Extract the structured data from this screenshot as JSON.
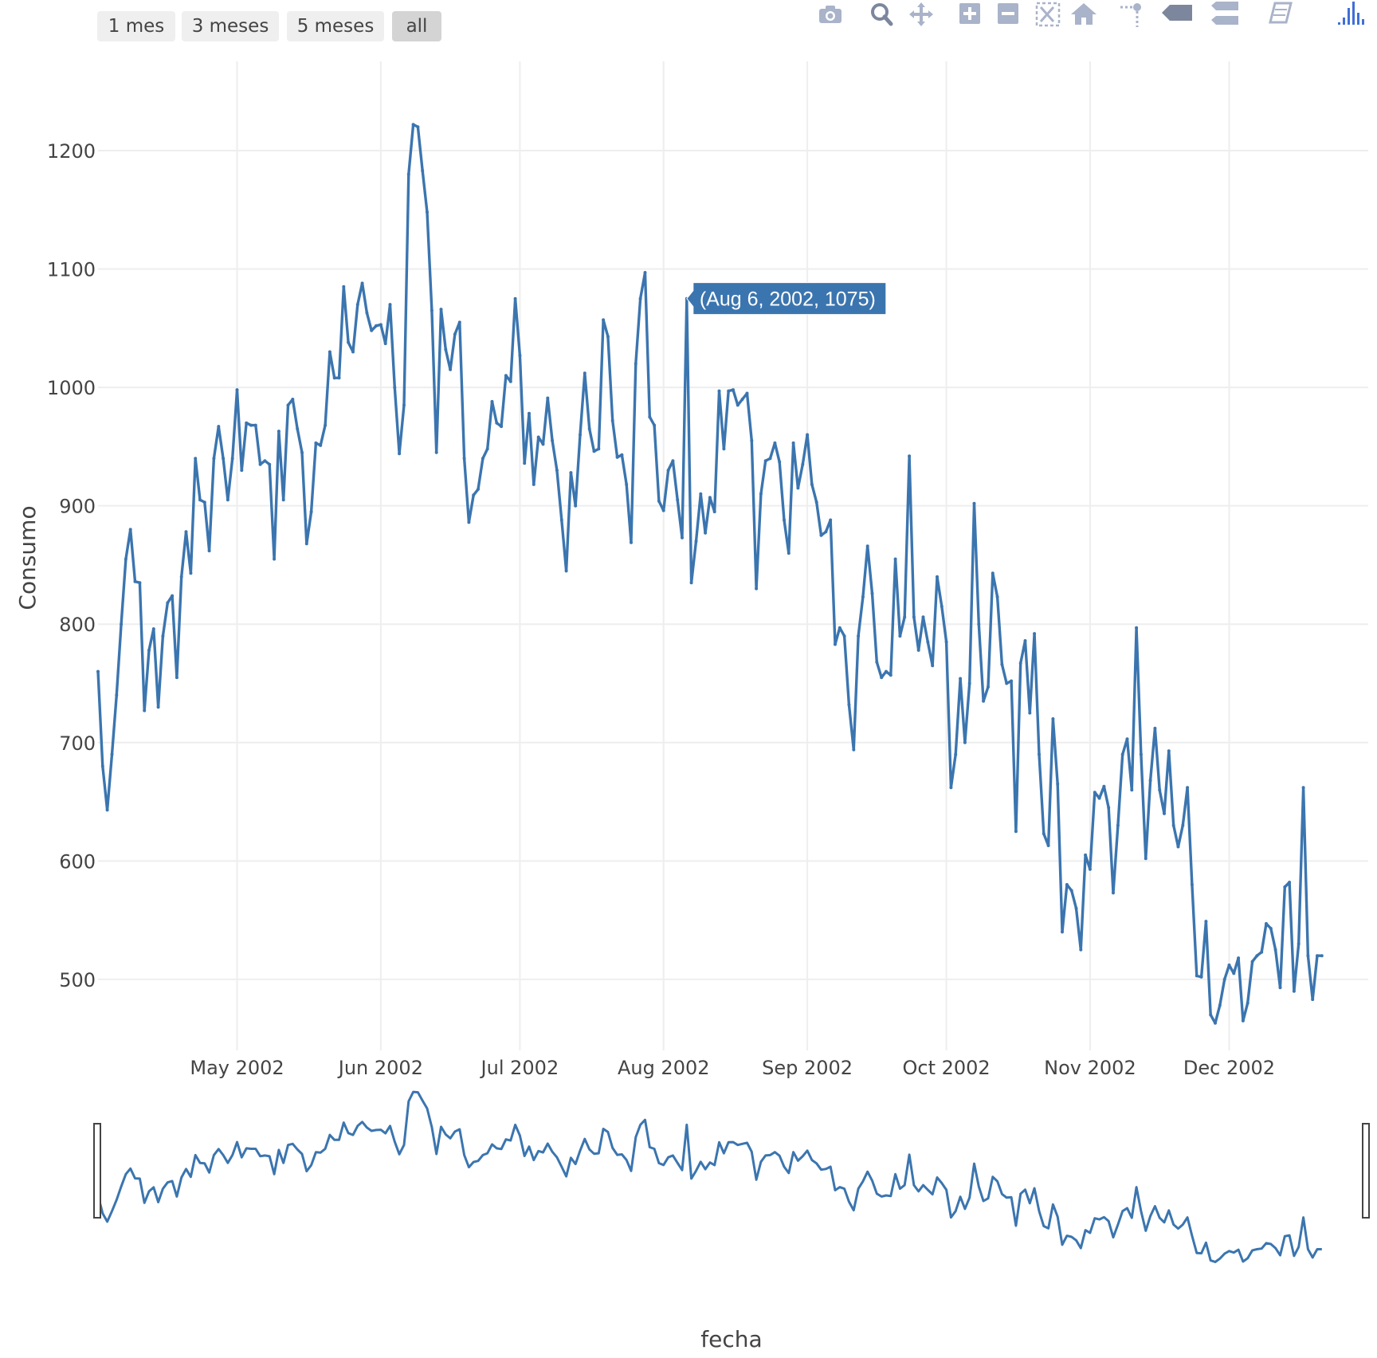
{
  "range_selector": {
    "buttons": [
      {
        "label": "1 mes"
      },
      {
        "label": "3 meses"
      },
      {
        "label": "5 meses"
      },
      {
        "label": "all",
        "active": true
      }
    ]
  },
  "modebar": {
    "icons": [
      "camera-icon",
      "zoom-icon",
      "pan-icon",
      "zoom-in-icon",
      "zoom-out-icon",
      "autoscale-icon",
      "reset-axes-icon",
      "spike-lines-icon",
      "hover-closest-icon",
      "hover-compare-icon",
      "edit-chart-icon",
      "plotly-logo-icon"
    ]
  },
  "colors": {
    "line": "#3b75af",
    "grid": "#eeeeee",
    "tooltip_bg": "#3b75af",
    "tooltip_text": "#ffffff",
    "axis_text": "#444444"
  },
  "chart_data": {
    "type": "line",
    "title": "",
    "xlabel": "fecha",
    "ylabel": "Consumo",
    "x_start": "2002-04-01",
    "x_end": "2002-12-31",
    "ylim": [
      440,
      1270
    ],
    "yticks": [
      500,
      600,
      700,
      800,
      900,
      1000,
      1100,
      1200
    ],
    "xticks": [
      {
        "date": "2002-05-01",
        "label": "May 2002"
      },
      {
        "date": "2002-06-01",
        "label": "Jun 2002"
      },
      {
        "date": "2002-07-01",
        "label": "Jul 2002"
      },
      {
        "date": "2002-08-01",
        "label": "Aug 2002"
      },
      {
        "date": "2002-09-01",
        "label": "Sep 2002"
      },
      {
        "date": "2002-10-01",
        "label": "Oct 2002"
      },
      {
        "date": "2002-11-01",
        "label": "Nov 2002"
      },
      {
        "date": "2002-12-01",
        "label": "Dec 2002"
      }
    ],
    "grid": true,
    "rangeslider": true,
    "tooltip": {
      "date": "2002-08-06",
      "value": 1075,
      "text": "(Aug 6, 2002, 1075)"
    },
    "series": [
      {
        "points": [
          [
            "2002-04-01",
            760
          ],
          [
            "2002-04-02",
            680
          ],
          [
            "2002-04-03",
            643
          ],
          [
            "2002-04-04",
            690
          ],
          [
            "2002-04-05",
            740
          ],
          [
            "2002-04-06",
            800
          ],
          [
            "2002-04-07",
            855
          ],
          [
            "2002-04-08",
            880
          ],
          [
            "2002-04-09",
            836
          ],
          [
            "2002-04-10",
            835
          ],
          [
            "2002-04-11",
            727
          ],
          [
            "2002-04-12",
            778
          ],
          [
            "2002-04-13",
            796
          ],
          [
            "2002-04-14",
            730
          ],
          [
            "2002-04-15",
            790
          ],
          [
            "2002-04-16",
            818
          ],
          [
            "2002-04-17",
            824
          ],
          [
            "2002-04-18",
            755
          ],
          [
            "2002-04-19",
            840
          ],
          [
            "2002-04-20",
            878
          ],
          [
            "2002-04-21",
            843
          ],
          [
            "2002-04-22",
            940
          ],
          [
            "2002-04-23",
            905
          ],
          [
            "2002-04-24",
            903
          ],
          [
            "2002-04-25",
            862
          ],
          [
            "2002-04-26",
            940
          ],
          [
            "2002-04-27",
            967
          ],
          [
            "2002-04-28",
            940
          ],
          [
            "2002-04-29",
            905
          ],
          [
            "2002-04-30",
            940
          ],
          [
            "2002-05-01",
            998
          ],
          [
            "2002-05-02",
            930
          ],
          [
            "2002-05-03",
            970
          ],
          [
            "2002-05-04",
            968
          ],
          [
            "2002-05-05",
            968
          ],
          [
            "2002-05-06",
            935
          ],
          [
            "2002-05-07",
            938
          ],
          [
            "2002-05-08",
            935
          ],
          [
            "2002-05-09",
            855
          ],
          [
            "2002-05-10",
            963
          ],
          [
            "2002-05-11",
            905
          ],
          [
            "2002-05-12",
            985
          ],
          [
            "2002-05-13",
            990
          ],
          [
            "2002-05-14",
            965
          ],
          [
            "2002-05-15",
            945
          ],
          [
            "2002-05-16",
            868
          ],
          [
            "2002-05-17",
            895
          ],
          [
            "2002-05-18",
            953
          ],
          [
            "2002-05-19",
            951
          ],
          [
            "2002-05-20",
            968
          ],
          [
            "2002-05-21",
            1030
          ],
          [
            "2002-05-22",
            1008
          ],
          [
            "2002-05-23",
            1008
          ],
          [
            "2002-05-24",
            1085
          ],
          [
            "2002-05-25",
            1038
          ],
          [
            "2002-05-26",
            1030
          ],
          [
            "2002-05-27",
            1070
          ],
          [
            "2002-05-28",
            1088
          ],
          [
            "2002-05-29",
            1063
          ],
          [
            "2002-05-30",
            1048
          ],
          [
            "2002-05-31",
            1052
          ],
          [
            "2002-06-01",
            1053
          ],
          [
            "2002-06-02",
            1037
          ],
          [
            "2002-06-03",
            1070
          ],
          [
            "2002-06-04",
            1000
          ],
          [
            "2002-06-05",
            944
          ],
          [
            "2002-06-06",
            985
          ],
          [
            "2002-06-07",
            1180
          ],
          [
            "2002-06-08",
            1222
          ],
          [
            "2002-06-09",
            1220
          ],
          [
            "2002-06-10",
            1183
          ],
          [
            "2002-06-11",
            1148
          ],
          [
            "2002-06-12",
            1065
          ],
          [
            "2002-06-13",
            945
          ],
          [
            "2002-06-14",
            1066
          ],
          [
            "2002-06-15",
            1032
          ],
          [
            "2002-06-16",
            1015
          ],
          [
            "2002-06-17",
            1045
          ],
          [
            "2002-06-18",
            1055
          ],
          [
            "2002-06-19",
            940
          ],
          [
            "2002-06-20",
            886
          ],
          [
            "2002-06-21",
            909
          ],
          [
            "2002-06-22",
            914
          ],
          [
            "2002-06-23",
            940
          ],
          [
            "2002-06-24",
            948
          ],
          [
            "2002-06-25",
            988
          ],
          [
            "2002-06-26",
            970
          ],
          [
            "2002-06-27",
            967
          ],
          [
            "2002-06-28",
            1010
          ],
          [
            "2002-06-29",
            1005
          ],
          [
            "2002-06-30",
            1075
          ],
          [
            "2002-07-01",
            1027
          ],
          [
            "2002-07-02",
            936
          ],
          [
            "2002-07-03",
            978
          ],
          [
            "2002-07-04",
            918
          ],
          [
            "2002-07-05",
            958
          ],
          [
            "2002-07-06",
            952
          ],
          [
            "2002-07-07",
            991
          ],
          [
            "2002-07-08",
            955
          ],
          [
            "2002-07-09",
            930
          ],
          [
            "2002-07-10",
            888
          ],
          [
            "2002-07-11",
            845
          ],
          [
            "2002-07-12",
            928
          ],
          [
            "2002-07-13",
            900
          ],
          [
            "2002-07-14",
            960
          ],
          [
            "2002-07-15",
            1012
          ],
          [
            "2002-07-16",
            965
          ],
          [
            "2002-07-17",
            946
          ],
          [
            "2002-07-18",
            948
          ],
          [
            "2002-07-19",
            1057
          ],
          [
            "2002-07-20",
            1043
          ],
          [
            "2002-07-21",
            972
          ],
          [
            "2002-07-22",
            941
          ],
          [
            "2002-07-23",
            943
          ],
          [
            "2002-07-24",
            918
          ],
          [
            "2002-07-25",
            869
          ],
          [
            "2002-07-26",
            1020
          ],
          [
            "2002-07-27",
            1075
          ],
          [
            "2002-07-28",
            1097
          ],
          [
            "2002-07-29",
            975
          ],
          [
            "2002-07-30",
            968
          ],
          [
            "2002-07-31",
            904
          ],
          [
            "2002-08-01",
            896
          ],
          [
            "2002-08-02",
            930
          ],
          [
            "2002-08-03",
            938
          ],
          [
            "2002-08-04",
            905
          ],
          [
            "2002-08-05",
            873
          ],
          [
            "2002-08-06",
            1075
          ],
          [
            "2002-08-07",
            835
          ],
          [
            "2002-08-08",
            870
          ],
          [
            "2002-08-09",
            910
          ],
          [
            "2002-08-10",
            877
          ],
          [
            "2002-08-11",
            907
          ],
          [
            "2002-08-12",
            895
          ],
          [
            "2002-08-13",
            997
          ],
          [
            "2002-08-14",
            948
          ],
          [
            "2002-08-15",
            997
          ],
          [
            "2002-08-16",
            998
          ],
          [
            "2002-08-17",
            985
          ],
          [
            "2002-08-18",
            990
          ],
          [
            "2002-08-19",
            995
          ],
          [
            "2002-08-20",
            955
          ],
          [
            "2002-08-21",
            830
          ],
          [
            "2002-08-22",
            910
          ],
          [
            "2002-08-23",
            938
          ],
          [
            "2002-08-24",
            940
          ],
          [
            "2002-08-25",
            953
          ],
          [
            "2002-08-26",
            937
          ],
          [
            "2002-08-27",
            888
          ],
          [
            "2002-08-28",
            860
          ],
          [
            "2002-08-29",
            953
          ],
          [
            "2002-08-30",
            915
          ],
          [
            "2002-08-31",
            935
          ],
          [
            "2002-09-01",
            960
          ],
          [
            "2002-09-02",
            918
          ],
          [
            "2002-09-03",
            903
          ],
          [
            "2002-09-04",
            875
          ],
          [
            "2002-09-05",
            878
          ],
          [
            "2002-09-06",
            888
          ],
          [
            "2002-09-07",
            783
          ],
          [
            "2002-09-08",
            797
          ],
          [
            "2002-09-09",
            790
          ],
          [
            "2002-09-10",
            732
          ],
          [
            "2002-09-11",
            694
          ],
          [
            "2002-09-12",
            790
          ],
          [
            "2002-09-13",
            823
          ],
          [
            "2002-09-14",
            866
          ],
          [
            "2002-09-15",
            826
          ],
          [
            "2002-09-16",
            768
          ],
          [
            "2002-09-17",
            755
          ],
          [
            "2002-09-18",
            760
          ],
          [
            "2002-09-19",
            757
          ],
          [
            "2002-09-20",
            855
          ],
          [
            "2002-09-21",
            790
          ],
          [
            "2002-09-22",
            806
          ],
          [
            "2002-09-23",
            942
          ],
          [
            "2002-09-24",
            806
          ],
          [
            "2002-09-25",
            778
          ],
          [
            "2002-09-26",
            806
          ],
          [
            "2002-09-27",
            785
          ],
          [
            "2002-09-28",
            765
          ],
          [
            "2002-09-29",
            840
          ],
          [
            "2002-09-30",
            815
          ],
          [
            "2002-10-01",
            785
          ],
          [
            "2002-10-02",
            662
          ],
          [
            "2002-10-03",
            690
          ],
          [
            "2002-10-04",
            754
          ],
          [
            "2002-10-05",
            700
          ],
          [
            "2002-10-06",
            750
          ],
          [
            "2002-10-07",
            902
          ],
          [
            "2002-10-08",
            800
          ],
          [
            "2002-10-09",
            735
          ],
          [
            "2002-10-10",
            747
          ],
          [
            "2002-10-11",
            843
          ],
          [
            "2002-10-12",
            823
          ],
          [
            "2002-10-13",
            766
          ],
          [
            "2002-10-14",
            750
          ],
          [
            "2002-10-15",
            752
          ],
          [
            "2002-10-16",
            625
          ],
          [
            "2002-10-17",
            767
          ],
          [
            "2002-10-18",
            786
          ],
          [
            "2002-10-19",
            725
          ],
          [
            "2002-10-20",
            792
          ],
          [
            "2002-10-21",
            690
          ],
          [
            "2002-10-22",
            623
          ],
          [
            "2002-10-23",
            613
          ],
          [
            "2002-10-24",
            720
          ],
          [
            "2002-10-25",
            665
          ],
          [
            "2002-10-26",
            540
          ],
          [
            "2002-10-27",
            580
          ],
          [
            "2002-10-28",
            575
          ],
          [
            "2002-10-29",
            560
          ],
          [
            "2002-10-30",
            525
          ],
          [
            "2002-10-31",
            605
          ],
          [
            "2002-11-01",
            593
          ],
          [
            "2002-11-02",
            658
          ],
          [
            "2002-11-03",
            653
          ],
          [
            "2002-11-04",
            663
          ],
          [
            "2002-11-05",
            645
          ],
          [
            "2002-11-06",
            573
          ],
          [
            "2002-11-07",
            630
          ],
          [
            "2002-11-08",
            690
          ],
          [
            "2002-11-09",
            703
          ],
          [
            "2002-11-10",
            660
          ],
          [
            "2002-11-11",
            797
          ],
          [
            "2002-11-12",
            690
          ],
          [
            "2002-11-13",
            602
          ],
          [
            "2002-11-14",
            668
          ],
          [
            "2002-11-15",
            712
          ],
          [
            "2002-11-16",
            660
          ],
          [
            "2002-11-17",
            640
          ],
          [
            "2002-11-18",
            693
          ],
          [
            "2002-11-19",
            630
          ],
          [
            "2002-11-20",
            612
          ],
          [
            "2002-11-21",
            630
          ],
          [
            "2002-11-22",
            662
          ],
          [
            "2002-11-23",
            580
          ],
          [
            "2002-11-24",
            503
          ],
          [
            "2002-11-25",
            502
          ],
          [
            "2002-11-26",
            549
          ],
          [
            "2002-11-27",
            470
          ],
          [
            "2002-11-28",
            463
          ],
          [
            "2002-11-29",
            478
          ],
          [
            "2002-11-30",
            500
          ],
          [
            "2002-12-01",
            512
          ],
          [
            "2002-12-02",
            505
          ],
          [
            "2002-12-03",
            518
          ],
          [
            "2002-12-04",
            465
          ],
          [
            "2002-12-05",
            480
          ],
          [
            "2002-12-06",
            515
          ],
          [
            "2002-12-07",
            520
          ],
          [
            "2002-12-08",
            523
          ],
          [
            "2002-12-09",
            547
          ],
          [
            "2002-12-10",
            543
          ],
          [
            "2002-12-11",
            525
          ],
          [
            "2002-12-12",
            493
          ],
          [
            "2002-12-13",
            578
          ],
          [
            "2002-12-14",
            582
          ],
          [
            "2002-12-15",
            490
          ],
          [
            "2002-12-16",
            530
          ],
          [
            "2002-12-17",
            662
          ],
          [
            "2002-12-18",
            520
          ],
          [
            "2002-12-19",
            483
          ],
          [
            "2002-12-20",
            520
          ],
          [
            "2002-12-21",
            520
          ]
        ]
      }
    ]
  }
}
